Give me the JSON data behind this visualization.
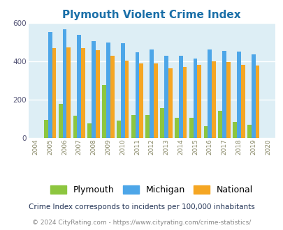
{
  "title": "Plymouth Violent Crime Index",
  "years": [
    2004,
    2005,
    2006,
    2007,
    2008,
    2009,
    2010,
    2011,
    2012,
    2013,
    2014,
    2015,
    2016,
    2017,
    2018,
    2019,
    2020
  ],
  "plymouth": [
    null,
    95,
    180,
    115,
    75,
    275,
    90,
    120,
    120,
    155,
    105,
    105,
    63,
    143,
    82,
    68,
    null
  ],
  "michigan": [
    null,
    553,
    567,
    540,
    505,
    500,
    493,
    447,
    460,
    430,
    430,
    415,
    462,
    455,
    452,
    437,
    null
  ],
  "national": [
    null,
    470,
    473,
    468,
    458,
    430,
    405,
    388,
    388,
    365,
    370,
    383,
    400,
    397,
    381,
    378,
    null
  ],
  "colors": {
    "plymouth": "#8dc63f",
    "michigan": "#4da6e8",
    "national": "#f5a623",
    "background": "#ddeef5",
    "grid": "#ffffff"
  },
  "ylim": [
    0,
    600
  ],
  "yticks": [
    0,
    200,
    400,
    600
  ],
  "footnote1": "Crime Index corresponds to incidents per 100,000 inhabitants",
  "footnote2": "© 2024 CityRating.com - https://www.cityrating.com/crime-statistics/",
  "bar_width": 0.28
}
